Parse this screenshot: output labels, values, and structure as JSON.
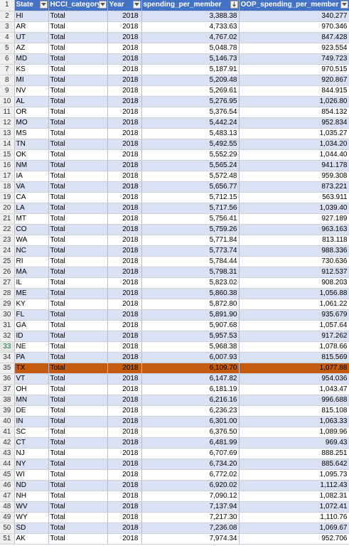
{
  "headers": [
    {
      "label": "State",
      "name": "state"
    },
    {
      "label": "HCCI_category",
      "name": "hcci-category"
    },
    {
      "label": "Year",
      "name": "year"
    },
    {
      "label": "spending_per_member",
      "name": "spending-per-member",
      "sorted": "descending"
    },
    {
      "label": "OOP_spending_per_member",
      "name": "oop-spending-per-member"
    }
  ],
  "icons": {
    "filter": "filter-dropdown-icon",
    "sort": "sort-descending-icon"
  },
  "colors": {
    "header": "#4472c4",
    "band": "#d9e1f2",
    "selected_row": "#c55a11"
  },
  "selected_row": 35,
  "rows": [
    {
      "n": "2",
      "state": "HI",
      "category": "Total",
      "year": "2018",
      "spend": "3,388.38",
      "oop": "340.277"
    },
    {
      "n": "3",
      "state": "AR",
      "category": "Total",
      "year": "2018",
      "spend": "4,733.63",
      "oop": "970.346"
    },
    {
      "n": "4",
      "state": "UT",
      "category": "Total",
      "year": "2018",
      "spend": "4,767.02",
      "oop": "847.428"
    },
    {
      "n": "5",
      "state": "AZ",
      "category": "Total",
      "year": "2018",
      "spend": "5,048.78",
      "oop": "923.554"
    },
    {
      "n": "6",
      "state": "MD",
      "category": "Total",
      "year": "2018",
      "spend": "5,146.73",
      "oop": "749.723"
    },
    {
      "n": "7",
      "state": "KS",
      "category": "Total",
      "year": "2018",
      "spend": "5,187.91",
      "oop": "970.515"
    },
    {
      "n": "8",
      "state": "MI",
      "category": "Total",
      "year": "2018",
      "spend": "5,209.48",
      "oop": "920.867"
    },
    {
      "n": "9",
      "state": "NV",
      "category": "Total",
      "year": "2018",
      "spend": "5,269.61",
      "oop": "844.915"
    },
    {
      "n": "10",
      "state": "AL",
      "category": "Total",
      "year": "2018",
      "spend": "5,276.95",
      "oop": "1,026.80"
    },
    {
      "n": "11",
      "state": "OR",
      "category": "Total",
      "year": "2018",
      "spend": "5,376.54",
      "oop": "854.132"
    },
    {
      "n": "12",
      "state": "MO",
      "category": "Total",
      "year": "2018",
      "spend": "5,442.24",
      "oop": "952.834"
    },
    {
      "n": "13",
      "state": "MS",
      "category": "Total",
      "year": "2018",
      "spend": "5,483.13",
      "oop": "1,035.27"
    },
    {
      "n": "14",
      "state": "TN",
      "category": "Total",
      "year": "2018",
      "spend": "5,492.55",
      "oop": "1,034.20"
    },
    {
      "n": "15",
      "state": "OK",
      "category": "Total",
      "year": "2018",
      "spend": "5,552.29",
      "oop": "1,044.40"
    },
    {
      "n": "16",
      "state": "NM",
      "category": "Total",
      "year": "2018",
      "spend": "5,565.24",
      "oop": "941.178"
    },
    {
      "n": "17",
      "state": "IA",
      "category": "Total",
      "year": "2018",
      "spend": "5,572.48",
      "oop": "959.308"
    },
    {
      "n": "18",
      "state": "VA",
      "category": "Total",
      "year": "2018",
      "spend": "5,656.77",
      "oop": "873.221"
    },
    {
      "n": "19",
      "state": "CA",
      "category": "Total",
      "year": "2018",
      "spend": "5,712.15",
      "oop": "563.911"
    },
    {
      "n": "20",
      "state": "LA",
      "category": "Total",
      "year": "2018",
      "spend": "5,717.56",
      "oop": "1,039.40"
    },
    {
      "n": "21",
      "state": "MT",
      "category": "Total",
      "year": "2018",
      "spend": "5,756.41",
      "oop": "927.189"
    },
    {
      "n": "22",
      "state": "CO",
      "category": "Total",
      "year": "2018",
      "spend": "5,759.26",
      "oop": "963.163"
    },
    {
      "n": "23",
      "state": "WA",
      "category": "Total",
      "year": "2018",
      "spend": "5,771.84",
      "oop": "813.118"
    },
    {
      "n": "24",
      "state": "NC",
      "category": "Total",
      "year": "2018",
      "spend": "5,773.74",
      "oop": "988.336"
    },
    {
      "n": "25",
      "state": "RI",
      "category": "Total",
      "year": "2018",
      "spend": "5,784.44",
      "oop": "730.636"
    },
    {
      "n": "26",
      "state": "MA",
      "category": "Total",
      "year": "2018",
      "spend": "5,798.31",
      "oop": "912.537"
    },
    {
      "n": "27",
      "state": "IL",
      "category": "Total",
      "year": "2018",
      "spend": "5,823.02",
      "oop": "908.203"
    },
    {
      "n": "28",
      "state": "ME",
      "category": "Total",
      "year": "2018",
      "spend": "5,860.38",
      "oop": "1,056.88"
    },
    {
      "n": "29",
      "state": "KY",
      "category": "Total",
      "year": "2018",
      "spend": "5,872.80",
      "oop": "1,061.22"
    },
    {
      "n": "30",
      "state": "FL",
      "category": "Total",
      "year": "2018",
      "spend": "5,891.90",
      "oop": "935.679"
    },
    {
      "n": "31",
      "state": "GA",
      "category": "Total",
      "year": "2018",
      "spend": "5,907.68",
      "oop": "1,057.64"
    },
    {
      "n": "32",
      "state": "ID",
      "category": "Total",
      "year": "2018",
      "spend": "5,957.53",
      "oop": "917.262"
    },
    {
      "n": "33",
      "state": "NE",
      "category": "Total",
      "year": "2018",
      "spend": "5,968.38",
      "oop": "1,078.66"
    },
    {
      "n": "34",
      "state": "PA",
      "category": "Total",
      "year": "2018",
      "spend": "6,007.93",
      "oop": "815.569"
    },
    {
      "n": "35",
      "state": "TX",
      "category": "Total",
      "year": "2018",
      "spend": "6,109.70",
      "oop": "1,077.88"
    },
    {
      "n": "36",
      "state": "VT",
      "category": "Total",
      "year": "2018",
      "spend": "6,147.82",
      "oop": "954.036"
    },
    {
      "n": "37",
      "state": "OH",
      "category": "Total",
      "year": "2018",
      "spend": "6,181.19",
      "oop": "1,043.47"
    },
    {
      "n": "38",
      "state": "MN",
      "category": "Total",
      "year": "2018",
      "spend": "6,216.16",
      "oop": "996.688"
    },
    {
      "n": "39",
      "state": "DE",
      "category": "Total",
      "year": "2018",
      "spend": "6,236.23",
      "oop": "815.108"
    },
    {
      "n": "40",
      "state": "IN",
      "category": "Total",
      "year": "2018",
      "spend": "6,301.00",
      "oop": "1,063.33"
    },
    {
      "n": "41",
      "state": "SC",
      "category": "Total",
      "year": "2018",
      "spend": "6,376.50",
      "oop": "1,089.96"
    },
    {
      "n": "42",
      "state": "CT",
      "category": "Total",
      "year": "2018",
      "spend": "6,481.99",
      "oop": "969.43"
    },
    {
      "n": "43",
      "state": "NJ",
      "category": "Total",
      "year": "2018",
      "spend": "6,707.69",
      "oop": "888.251"
    },
    {
      "n": "44",
      "state": "NY",
      "category": "Total",
      "year": "2018",
      "spend": "6,734.20",
      "oop": "885.642"
    },
    {
      "n": "45",
      "state": "WI",
      "category": "Total",
      "year": "2018",
      "spend": "6,772.02",
      "oop": "1,095.73"
    },
    {
      "n": "46",
      "state": "ND",
      "category": "Total",
      "year": "2018",
      "spend": "6,920.02",
      "oop": "1,112.43"
    },
    {
      "n": "47",
      "state": "NH",
      "category": "Total",
      "year": "2018",
      "spend": "7,090.12",
      "oop": "1,082.31"
    },
    {
      "n": "48",
      "state": "WV",
      "category": "Total",
      "year": "2018",
      "spend": "7,137.94",
      "oop": "1,072.41"
    },
    {
      "n": "49",
      "state": "WY",
      "category": "Total",
      "year": "2018",
      "spend": "7,217.30",
      "oop": "1,110.76"
    },
    {
      "n": "50",
      "state": "SD",
      "category": "Total",
      "year": "2018",
      "spend": "7,236.08",
      "oop": "1,069.67"
    },
    {
      "n": "51",
      "state": "AK",
      "category": "Total",
      "year": "2018",
      "spend": "7,974.34",
      "oop": "952.706"
    }
  ]
}
